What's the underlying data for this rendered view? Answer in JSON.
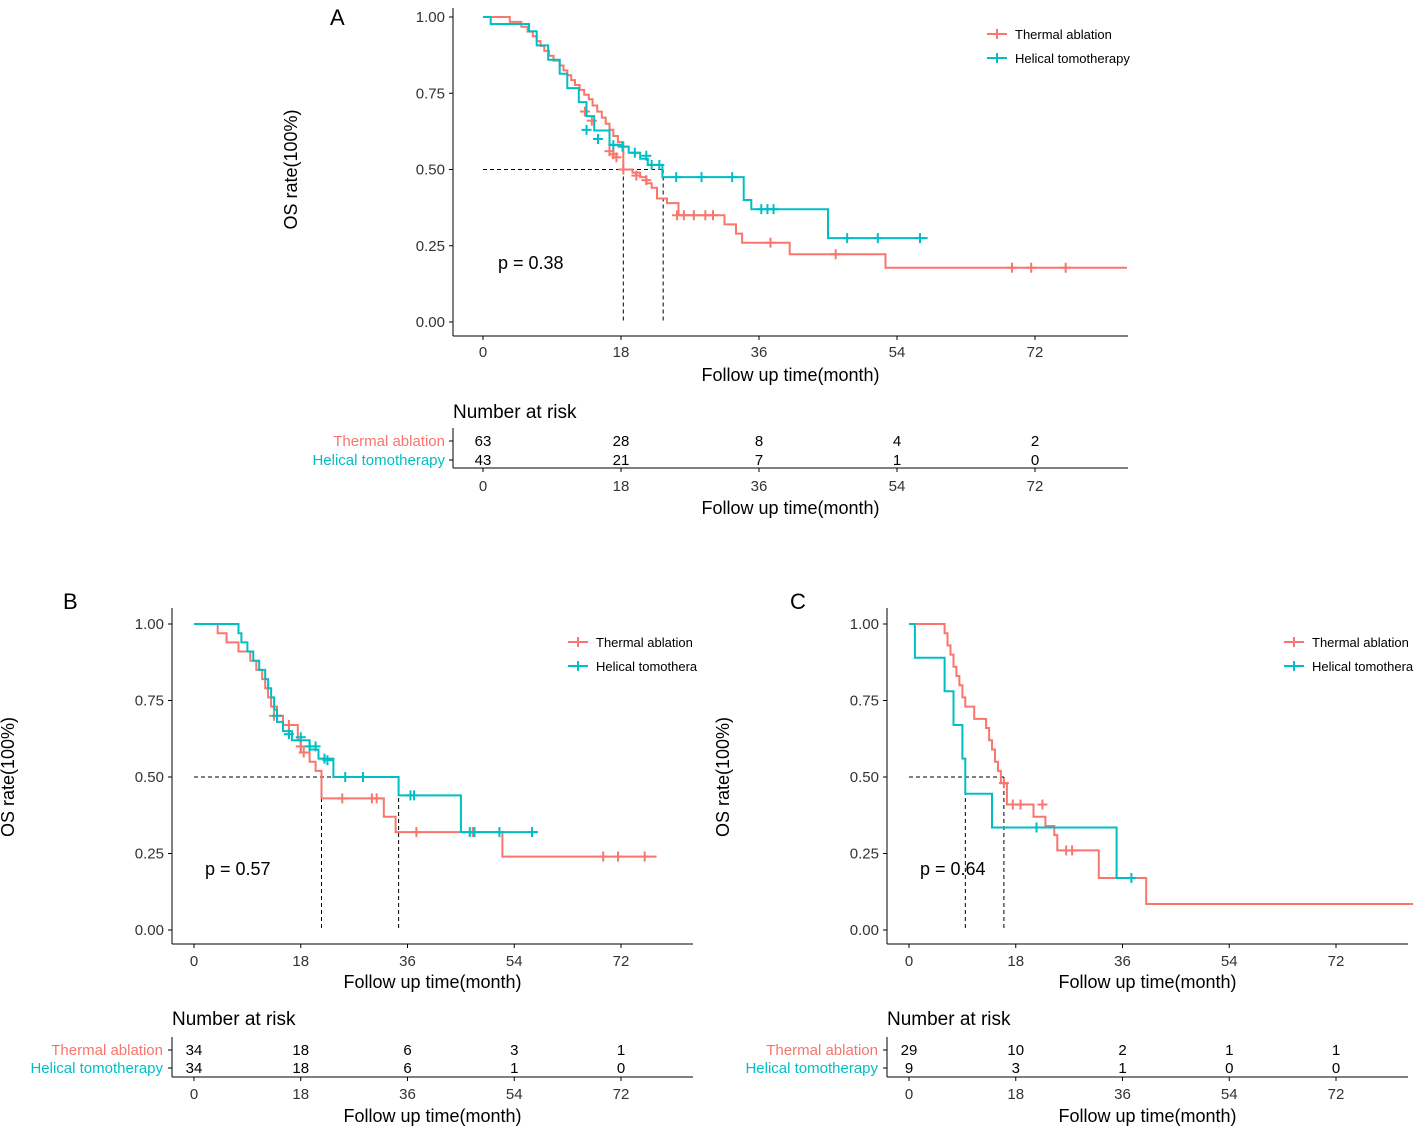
{
  "colors": {
    "thermal": "#F8766D",
    "helical": "#00BFC4",
    "axis": "#000000",
    "ref": "#000000"
  },
  "chart_data": [
    {
      "panel": "A",
      "type": "line",
      "subtype": "kaplan-meier",
      "xlabel": "Follow up time(month)",
      "ylabel": "OS rate(100%)",
      "xlim": [
        -5,
        84
      ],
      "xticks": [
        "0",
        "18",
        "36",
        "54",
        "72"
      ],
      "ylim": [
        0,
        1
      ],
      "yticks": [
        "0.00",
        "0.25",
        "0.50",
        "0.75",
        "1.00"
      ],
      "p_value": "p = 0.38",
      "legend": [
        "Thermal ablation",
        "Helical tomotherapy"
      ],
      "median": [
        18.3,
        23.5
      ],
      "series": [
        {
          "name": "Thermal ablation",
          "steps": [
            [
              0,
              1.0
            ],
            [
              3.5,
              0.984
            ],
            [
              5,
              0.968
            ],
            [
              5.8,
              0.952
            ],
            [
              6.5,
              0.937
            ],
            [
              7,
              0.921
            ],
            [
              7.5,
              0.905
            ],
            [
              8,
              0.889
            ],
            [
              8.6,
              0.873
            ],
            [
              9.2,
              0.857
            ],
            [
              10,
              0.841
            ],
            [
              10.5,
              0.825
            ],
            [
              11,
              0.809
            ],
            [
              11.5,
              0.793
            ],
            [
              12,
              0.777
            ],
            [
              12.6,
              0.761
            ],
            [
              13.2,
              0.745
            ],
            [
              13.8,
              0.73
            ],
            [
              14.3,
              0.71
            ],
            [
              14.9,
              0.69
            ],
            [
              15.5,
              0.67
            ],
            [
              16,
              0.65
            ],
            [
              16.5,
              0.63
            ],
            [
              17,
              0.61
            ],
            [
              17.6,
              0.59
            ],
            [
              18.3,
              0.5
            ],
            [
              19.5,
              0.49
            ],
            [
              20.5,
              0.475
            ],
            [
              21.3,
              0.455
            ],
            [
              22,
              0.44
            ],
            [
              22.7,
              0.405
            ],
            [
              24,
              0.39
            ],
            [
              25.5,
              0.35
            ],
            [
              31.5,
              0.32
            ],
            [
              33,
              0.29
            ],
            [
              33.8,
              0.26
            ],
            [
              40,
              0.222
            ],
            [
              52.5,
              0.178
            ],
            [
              84,
              0.178
            ]
          ],
          "censors": [
            [
              13.3,
              0.69
            ],
            [
              14.2,
              0.66
            ],
            [
              16.5,
              0.56
            ],
            [
              17,
              0.55
            ],
            [
              17.4,
              0.54
            ],
            [
              18.3,
              0.5
            ],
            [
              20,
              0.48
            ],
            [
              21.3,
              0.465
            ],
            [
              25.3,
              0.35
            ],
            [
              26.2,
              0.35
            ],
            [
              27.5,
              0.35
            ],
            [
              29,
              0.35
            ],
            [
              30,
              0.35
            ],
            [
              37.5,
              0.26
            ],
            [
              46,
              0.222
            ],
            [
              69,
              0.178
            ],
            [
              71.5,
              0.178
            ],
            [
              76,
              0.178
            ]
          ]
        },
        {
          "name": "Helical tomotherapy",
          "steps": [
            [
              0,
              1.0
            ],
            [
              1,
              0.977
            ],
            [
              6,
              0.953
            ],
            [
              7,
              0.907
            ],
            [
              8.5,
              0.86
            ],
            [
              10,
              0.814
            ],
            [
              11,
              0.767
            ],
            [
              12.5,
              0.721
            ],
            [
              13.5,
              0.675
            ],
            [
              14.5,
              0.628
            ],
            [
              16.5,
              0.581
            ],
            [
              18,
              0.575
            ],
            [
              19,
              0.555
            ],
            [
              20.5,
              0.535
            ],
            [
              21.5,
              0.515
            ],
            [
              23.4,
              0.475
            ],
            [
              34,
              0.4
            ],
            [
              35,
              0.37
            ],
            [
              45,
              0.275
            ],
            [
              58,
              0.275
            ]
          ],
          "censors": [
            [
              13.5,
              0.63
            ],
            [
              15,
              0.6
            ],
            [
              17,
              0.58
            ],
            [
              18.2,
              0.575
            ],
            [
              19.8,
              0.555
            ],
            [
              21.3,
              0.545
            ],
            [
              22,
              0.515
            ],
            [
              23,
              0.515
            ],
            [
              25.2,
              0.475
            ],
            [
              28.5,
              0.475
            ],
            [
              32.5,
              0.475
            ],
            [
              36.3,
              0.37
            ],
            [
              37.1,
              0.37
            ],
            [
              37.9,
              0.37
            ],
            [
              47.5,
              0.275
            ],
            [
              51.5,
              0.275
            ],
            [
              57,
              0.275
            ]
          ]
        }
      ],
      "risk_table": {
        "title": "Number at risk",
        "xlabel": "Follow up time(month)",
        "xticks": [
          "0",
          "18",
          "36",
          "54",
          "72"
        ],
        "rows": [
          {
            "label": "Thermal ablation",
            "values": [
              "63",
              "28",
              "8",
              "4",
              "2"
            ]
          },
          {
            "label": "Helical tomotherapy",
            "values": [
              "43",
              "21",
              "7",
              "1",
              "0"
            ]
          }
        ]
      }
    },
    {
      "panel": "B",
      "type": "line",
      "subtype": "kaplan-meier",
      "xlabel": "Follow up time(month)",
      "ylabel": "OS rate(100%)",
      "xlim": [
        -4,
        84
      ],
      "xticks": [
        "0",
        "18",
        "36",
        "54",
        "72"
      ],
      "ylim": [
        0,
        1
      ],
      "yticks": [
        "0.00",
        "0.25",
        "0.50",
        "0.75",
        "1.00"
      ],
      "p_value": "p = 0.57",
      "legend": [
        "Thermal ablation",
        "Helical tomothera"
      ],
      "median": [
        21.5,
        34.5
      ],
      "series": [
        {
          "name": "Thermal ablation",
          "steps": [
            [
              0,
              1.0
            ],
            [
              4,
              0.97
            ],
            [
              5.5,
              0.94
            ],
            [
              7.5,
              0.91
            ],
            [
              9.5,
              0.88
            ],
            [
              10.5,
              0.85
            ],
            [
              11.5,
              0.82
            ],
            [
              12,
              0.79
            ],
            [
              12.5,
              0.76
            ],
            [
              13,
              0.73
            ],
            [
              14,
              0.7
            ],
            [
              15,
              0.67
            ],
            [
              17.5,
              0.62
            ],
            [
              18,
              0.58
            ],
            [
              19.5,
              0.55
            ],
            [
              20.5,
              0.52
            ],
            [
              21.5,
              0.43
            ],
            [
              32,
              0.37
            ],
            [
              34,
              0.32
            ],
            [
              52,
              0.24
            ],
            [
              78,
              0.24
            ]
          ],
          "censors": [
            [
              13.5,
              0.7
            ],
            [
              16,
              0.67
            ],
            [
              18,
              0.6
            ],
            [
              18.5,
              0.58
            ],
            [
              25,
              0.43
            ],
            [
              30,
              0.43
            ],
            [
              30.8,
              0.43
            ],
            [
              37.5,
              0.32
            ],
            [
              47,
              0.32
            ],
            [
              69,
              0.24
            ],
            [
              71.5,
              0.24
            ],
            [
              76,
              0.24
            ]
          ]
        },
        {
          "name": "Helical tomothera",
          "steps": [
            [
              0,
              1.0
            ],
            [
              7.5,
              0.97
            ],
            [
              8,
              0.94
            ],
            [
              9,
              0.91
            ],
            [
              10,
              0.88
            ],
            [
              11,
              0.85
            ],
            [
              12,
              0.82
            ],
            [
              12.5,
              0.79
            ],
            [
              13,
              0.76
            ],
            [
              13.5,
              0.72
            ],
            [
              14,
              0.68
            ],
            [
              15,
              0.65
            ],
            [
              16.5,
              0.62
            ],
            [
              19.5,
              0.59
            ],
            [
              21,
              0.56
            ],
            [
              23.5,
              0.5
            ],
            [
              34.5,
              0.44
            ],
            [
              45,
              0.32
            ],
            [
              58,
              0.32
            ]
          ],
          "censors": [
            [
              14,
              0.7
            ],
            [
              16,
              0.64
            ],
            [
              18,
              0.63
            ],
            [
              19.5,
              0.6
            ],
            [
              20.5,
              0.6
            ],
            [
              22,
              0.56
            ],
            [
              22.5,
              0.555
            ],
            [
              25.5,
              0.5
            ],
            [
              28.5,
              0.5
            ],
            [
              36.5,
              0.44
            ],
            [
              37.1,
              0.44
            ],
            [
              46.5,
              0.32
            ],
            [
              47.3,
              0.32
            ],
            [
              51.5,
              0.32
            ],
            [
              57,
              0.32
            ]
          ]
        }
      ],
      "risk_table": {
        "title": "Number at risk",
        "xlabel": "Follow up time(month)",
        "xticks": [
          "0",
          "18",
          "36",
          "54",
          "72"
        ],
        "rows": [
          {
            "label": "Thermal ablation",
            "values": [
              "34",
              "18",
              "6",
              "3",
              "1"
            ]
          },
          {
            "label": "Helical tomotherapy",
            "values": [
              "34",
              "18",
              "6",
              "1",
              "0"
            ]
          }
        ]
      }
    },
    {
      "panel": "C",
      "type": "line",
      "subtype": "kaplan-meier",
      "xlabel": "Follow up time(month)",
      "ylabel": "OS rate(100%)",
      "xlim": [
        -4,
        84
      ],
      "xticks": [
        "0",
        "18",
        "36",
        "54",
        "72"
      ],
      "ylim": [
        0,
        1
      ],
      "yticks": [
        "0.00",
        "0.25",
        "0.50",
        "0.75",
        "1.00"
      ],
      "p_value": "p = 0.64",
      "legend": [
        "Thermal ablation",
        "Helical tomothera"
      ],
      "median": [
        16,
        9.5
      ],
      "series": [
        {
          "name": "Thermal ablation",
          "steps": [
            [
              0,
              1.0
            ],
            [
              6,
              0.97
            ],
            [
              6.5,
              0.93
            ],
            [
              7,
              0.9
            ],
            [
              7.5,
              0.86
            ],
            [
              8,
              0.83
            ],
            [
              8.5,
              0.8
            ],
            [
              9,
              0.76
            ],
            [
              9.5,
              0.73
            ],
            [
              11,
              0.69
            ],
            [
              13,
              0.66
            ],
            [
              13.5,
              0.62
            ],
            [
              14,
              0.59
            ],
            [
              14.5,
              0.55
            ],
            [
              15,
              0.52
            ],
            [
              15.5,
              0.48
            ],
            [
              16.5,
              0.41
            ],
            [
              21,
              0.37
            ],
            [
              23,
              0.34
            ],
            [
              24.5,
              0.31
            ],
            [
              25,
              0.26
            ],
            [
              32,
              0.17
            ],
            [
              40,
              0.085
            ],
            [
              85,
              0.085
            ]
          ],
          "censors": [
            [
              16,
              0.48
            ],
            [
              17.5,
              0.41
            ],
            [
              18.8,
              0.41
            ],
            [
              22.5,
              0.41
            ],
            [
              26.5,
              0.26
            ],
            [
              27.5,
              0.26
            ]
          ]
        },
        {
          "name": "Helical tomothera",
          "steps": [
            [
              0,
              1.0
            ],
            [
              1,
              0.89
            ],
            [
              6,
              0.78
            ],
            [
              7.5,
              0.67
            ],
            [
              9,
              0.56
            ],
            [
              9.5,
              0.445
            ],
            [
              14,
              0.335
            ],
            [
              35,
              0.17
            ],
            [
              38,
              0.17
            ]
          ],
          "censors": [
            [
              21.5,
              0.335
            ],
            [
              37.5,
              0.17
            ]
          ]
        }
      ],
      "risk_table": {
        "title": "Number at risk",
        "xlabel": "Follow up time(month)",
        "xticks": [
          "0",
          "18",
          "36",
          "54",
          "72"
        ],
        "rows": [
          {
            "label": "Thermal ablation",
            "values": [
              "29",
              "10",
              "2",
              "1",
              "1"
            ]
          },
          {
            "label": "Helical tomotherapy",
            "values": [
              "9",
              "3",
              "1",
              "0",
              "0"
            ]
          }
        ]
      }
    }
  ]
}
